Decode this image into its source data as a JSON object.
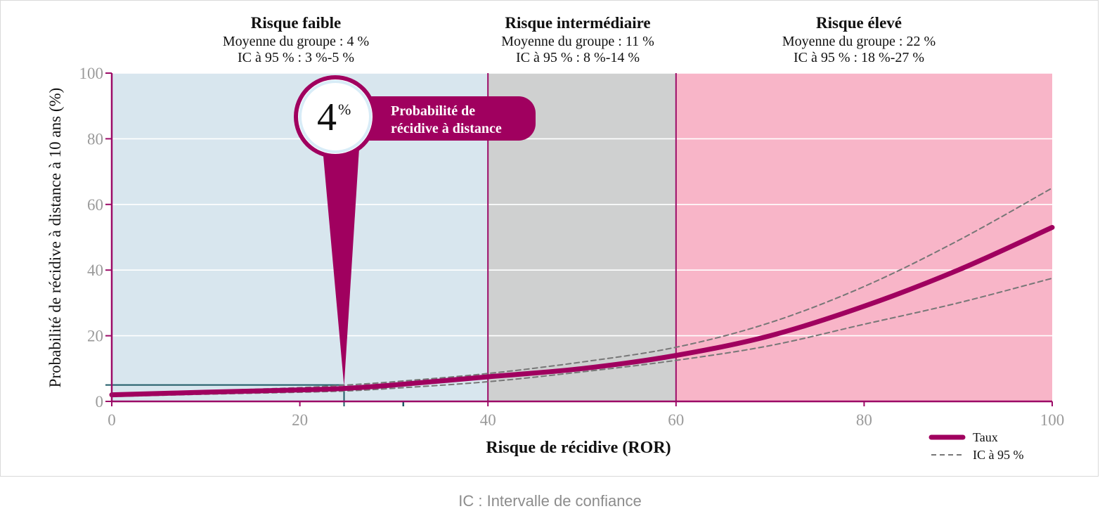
{
  "chart_data": {
    "type": "line",
    "xlabel": "Risque de récidive (ROR)",
    "ylabel": "Probabilité de récidive à distance à 10 ans (%)",
    "xlim": [
      0,
      100
    ],
    "ylim": [
      0,
      100
    ],
    "x_ticks": [
      0,
      20,
      40,
      60,
      80,
      100
    ],
    "y_ticks": [
      0,
      20,
      40,
      60,
      80,
      100
    ],
    "grid": "horizontal",
    "legend_position": "bottom-right",
    "regions": [
      {
        "title": "Risque faible",
        "mean": "Moyenne du groupe : 4 %",
        "ci": "IC à 95 % : 3 %-5 %",
        "x_start": 0,
        "x_end": 40,
        "color": "#d8e6ee"
      },
      {
        "title": "Risque intermédiaire",
        "mean": "Moyenne du groupe : 11 %",
        "ci": "IC à 95 % : 8 %-14 %",
        "x_start": 40,
        "x_end": 60,
        "color": "#cfd0d0"
      },
      {
        "title": "Risque élevé",
        "mean": "Moyenne du groupe : 22 %",
        "ci": "IC à 95 % : 18 %-27 %",
        "x_start": 60,
        "x_end": 100,
        "color": "#f8b5c8"
      }
    ],
    "series": [
      {
        "name": "Taux",
        "style": "solid",
        "color": "#a0005f",
        "x": [
          0,
          10,
          20,
          25,
          30,
          40,
          50,
          60,
          70,
          80,
          90,
          100
        ],
        "values": [
          2,
          2.8,
          3.5,
          4,
          5,
          7.5,
          10,
          14,
          20,
          29,
          40,
          53
        ]
      },
      {
        "name": "IC à 95 %",
        "style": "dashed",
        "color": "#777777",
        "x": [
          0,
          10,
          20,
          25,
          30,
          40,
          50,
          60,
          70,
          80,
          90,
          100
        ],
        "values": [
          2.3,
          3.2,
          4.2,
          5,
          6,
          8.5,
          12,
          16.5,
          24,
          35,
          49,
          65
        ]
      },
      {
        "name": "IC à 95 %",
        "style": "dashed",
        "color": "#777777",
        "x": [
          0,
          10,
          20,
          25,
          30,
          40,
          50,
          60,
          70,
          80,
          90,
          100
        ],
        "values": [
          1.5,
          2.2,
          2.8,
          3.2,
          4,
          6,
          9,
          12.5,
          17,
          23.5,
          30,
          37.5
        ]
      }
    ],
    "marker": {
      "x": 24.7,
      "value": 4,
      "value_label": "4",
      "unit_label": "%",
      "caption_line1": "Probabilité de",
      "caption_line2": "récidive à distance",
      "color": "#a0005f"
    },
    "reference_line": {
      "value": 5,
      "x_end": 24.7,
      "tick_x": 31,
      "color": "#1f5a66"
    },
    "legend": [
      {
        "label": "Taux",
        "style": "solid"
      },
      {
        "label": "IC à 95 %",
        "style": "dashed"
      }
    ]
  },
  "footnote": "IC : Intervalle de confiance"
}
